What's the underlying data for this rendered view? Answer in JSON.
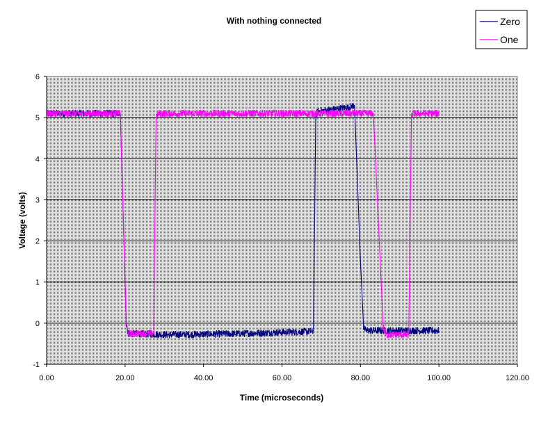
{
  "chart_data": {
    "type": "line",
    "title": "With nothing connected",
    "xlabel": "Time (microseconds)",
    "ylabel": "Voltage (volts)",
    "xlim": [
      0,
      120
    ],
    "ylim": [
      -1,
      6
    ],
    "x_ticks": [
      0,
      20,
      40,
      60,
      80,
      100,
      120
    ],
    "x_tick_labels": [
      "0.00",
      "20.00",
      "40.00",
      "60.00",
      "80.00",
      "100.00",
      "120.00"
    ],
    "y_ticks": [
      -1,
      0,
      1,
      2,
      3,
      4,
      5,
      6
    ],
    "y_tick_labels": [
      "-1",
      "0",
      "1",
      "2",
      "3",
      "4",
      "5",
      "6"
    ],
    "grid": true,
    "legend_position": "top-right",
    "plot_background": "#c0c0c0",
    "series": [
      {
        "name": "Zero",
        "color": "#000080",
        "points": [
          [
            0,
            5.1
          ],
          [
            18.8,
            5.1
          ],
          [
            20.3,
            0.0
          ],
          [
            20.8,
            -0.25
          ],
          [
            30,
            -0.28
          ],
          [
            40,
            -0.27
          ],
          [
            50,
            -0.25
          ],
          [
            60,
            -0.22
          ],
          [
            68.0,
            -0.2
          ],
          [
            68.6,
            5.0
          ],
          [
            69,
            5.15
          ],
          [
            73,
            5.2
          ],
          [
            77,
            5.25
          ],
          [
            78.5,
            5.3
          ],
          [
            80,
            1.5
          ],
          [
            80.8,
            -0.1
          ],
          [
            81.3,
            -0.18
          ],
          [
            90,
            -0.18
          ],
          [
            100,
            -0.18
          ]
        ]
      },
      {
        "name": "One",
        "color": "#ff00ff",
        "points": [
          [
            0,
            5.1
          ],
          [
            18.8,
            5.1
          ],
          [
            20.3,
            0.0
          ],
          [
            20.8,
            -0.25
          ],
          [
            27.3,
            -0.25
          ],
          [
            27.9,
            5.0
          ],
          [
            28.5,
            5.1
          ],
          [
            40,
            5.1
          ],
          [
            60,
            5.1
          ],
          [
            70,
            5.1
          ],
          [
            83.3,
            5.1
          ],
          [
            85.8,
            -0.1
          ],
          [
            86.5,
            -0.28
          ],
          [
            92.3,
            -0.28
          ],
          [
            93.0,
            5.05
          ],
          [
            93.5,
            5.1
          ],
          [
            100,
            5.1
          ]
        ]
      }
    ]
  }
}
